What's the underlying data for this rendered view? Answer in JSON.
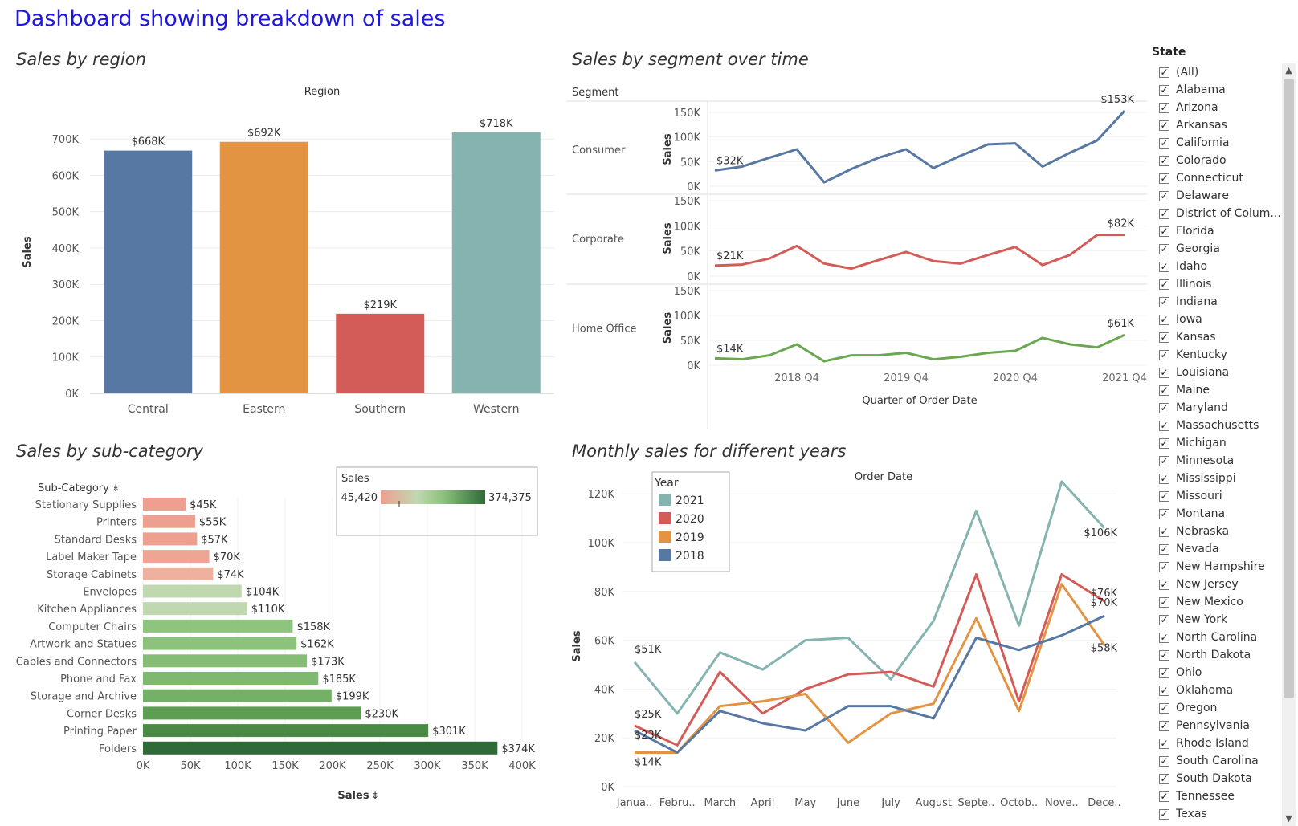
{
  "dashboard_title": "Dashboard showing breakdown of sales",
  "colors": {
    "central": "#5878a4",
    "eastern": "#e39442",
    "southern": "#d35c58",
    "western": "#85b4b0",
    "consumer": "#5878a4",
    "corporate": "#d35c58",
    "home_office": "#6aa84f",
    "y2021": "#85b4b0",
    "y2020": "#d35c58",
    "y2019": "#e39442",
    "y2018": "#5878a4"
  },
  "chart_data": [
    {
      "id": "region",
      "type": "bar",
      "title": "Sales by region",
      "header": "Region",
      "ylabel": "Sales",
      "categories": [
        "Central",
        "Eastern",
        "Southern",
        "Western"
      ],
      "values": [
        668000,
        692000,
        219000,
        718000
      ],
      "data_labels": [
        "$668K",
        "$692K",
        "$219K",
        "$718K"
      ],
      "ylim": [
        0,
        740000
      ],
      "yticks": [
        0,
        100000,
        200000,
        300000,
        400000,
        500000,
        600000,
        700000
      ],
      "ytick_labels": [
        "0K",
        "100K",
        "200K",
        "300K",
        "400K",
        "500K",
        "600K",
        "700K"
      ]
    },
    {
      "id": "segment",
      "type": "line",
      "title": "Sales by segment over time",
      "header": "Segment",
      "xlabel": "Quarter of Order Date",
      "ylabel": "Sales",
      "x_tick_labels": [
        "2018 Q4",
        "2019 Q4",
        "2020 Q4",
        "2021 Q4"
      ],
      "ylim": [
        0,
        150000
      ],
      "ytick_labels": [
        "0K",
        "50K",
        "100K",
        "150K"
      ],
      "series": [
        {
          "name": "Consumer",
          "values": [
            32000,
            40000,
            58000,
            75000,
            8000,
            35000,
            58000,
            75000,
            37000,
            62000,
            85000,
            87000,
            40000,
            68000,
            93000,
            153000
          ],
          "first_label": "$32K",
          "last_label": "$153K"
        },
        {
          "name": "Corporate",
          "values": [
            21000,
            23000,
            35000,
            60000,
            25000,
            15000,
            32000,
            48000,
            30000,
            25000,
            42000,
            58000,
            22000,
            42000,
            82000,
            82000
          ],
          "first_label": "$21K",
          "last_label": "$82K"
        },
        {
          "name": "Home Office",
          "values": [
            14000,
            12000,
            20000,
            42000,
            8000,
            20000,
            20000,
            25000,
            12000,
            17000,
            25000,
            29000,
            55000,
            42000,
            36000,
            61000
          ],
          "first_label": "$14K",
          "last_label": "$61K"
        }
      ]
    },
    {
      "id": "subcategory",
      "type": "bar",
      "title": "Sales by sub-category",
      "header": "Sub-Category",
      "xlabel": "Sales",
      "categories": [
        "Stationary Supplies",
        "Printers",
        "Standard Desks",
        "Label Maker Tape",
        "Storage Cabinets",
        "Envelopes",
        "Kitchen Appliances",
        "Computer Chairs",
        "Artwork and Statues",
        "Cables and Connectors",
        "Phone and Fax",
        "Storage and Archive",
        "Corner Desks",
        "Printing Paper",
        "Folders"
      ],
      "values": [
        45000,
        55000,
        57000,
        70000,
        74000,
        104000,
        110000,
        158000,
        162000,
        173000,
        185000,
        199000,
        230000,
        301000,
        374000
      ],
      "data_labels": [
        "$45K",
        "$55K",
        "$57K",
        "$70K",
        "$74K",
        "$104K",
        "$110K",
        "$158K",
        "$162K",
        "$173K",
        "$185K",
        "$199K",
        "$230K",
        "$301K",
        "$374K"
      ],
      "colors": [
        "#eda08f",
        "#eda08f",
        "#eda08f",
        "#eea594",
        "#eeb09f",
        "#c0d8b0",
        "#c0d8b0",
        "#8ec47e",
        "#8cc27c",
        "#85bd76",
        "#7fb870",
        "#74b065",
        "#5d9e52",
        "#4b8a46",
        "#2f6a38"
      ],
      "xlim": [
        0,
        400000
      ],
      "xtick_labels": [
        "0K",
        "50K",
        "100K",
        "150K",
        "200K",
        "250K",
        "300K",
        "350K",
        "400K"
      ],
      "legend": {
        "title": "Sales",
        "min_label": "45,420",
        "max_label": "374,375"
      }
    },
    {
      "id": "monthly",
      "type": "line",
      "title": "Monthly sales  for different years",
      "header": "Order Date",
      "ylabel": "Sales",
      "categories": [
        "Janua..",
        "Febru..",
        "March",
        "April",
        "May",
        "June",
        "July",
        "August",
        "Septe..",
        "Octob..",
        "Nove..",
        "Dece.."
      ],
      "ylim": [
        0,
        125000
      ],
      "ytick_labels": [
        "0K",
        "20K",
        "40K",
        "60K",
        "80K",
        "100K",
        "120K"
      ],
      "legend_title": "Year",
      "series": [
        {
          "name": "2021",
          "values": [
            51000,
            30000,
            55000,
            48000,
            60000,
            61000,
            44000,
            68000,
            113000,
            66000,
            125000,
            106000
          ],
          "first_label": "$51K",
          "last_label": "$106K"
        },
        {
          "name": "2020",
          "values": [
            25000,
            17000,
            47000,
            30000,
            40000,
            46000,
            47000,
            41000,
            87000,
            35000,
            87000,
            76000
          ],
          "first_label": "$25K",
          "last_label": "$76K"
        },
        {
          "name": "2019",
          "values": [
            14000,
            14000,
            33000,
            35000,
            38000,
            18000,
            30000,
            34000,
            69000,
            31000,
            83000,
            58000
          ],
          "first_label": "$14K",
          "last_label": "$58K"
        },
        {
          "name": "2018",
          "values": [
            23000,
            14000,
            31000,
            26000,
            23000,
            33000,
            33000,
            28000,
            61000,
            56000,
            62000,
            70000
          ],
          "first_label": "$23K",
          "last_label": "$70K"
        }
      ]
    }
  ],
  "state_filter": {
    "title": "State",
    "items": [
      "(All)",
      "Alabama",
      "Arizona",
      "Arkansas",
      "California",
      "Colorado",
      "Connecticut",
      "Delaware",
      "District of Colum...",
      "Florida",
      "Georgia",
      "Idaho",
      "Illinois",
      "Indiana",
      "Iowa",
      "Kansas",
      "Kentucky",
      "Louisiana",
      "Maine",
      "Maryland",
      "Massachusetts",
      "Michigan",
      "Minnesota",
      "Mississippi",
      "Missouri",
      "Montana",
      "Nebraska",
      "Nevada",
      "New Hampshire",
      "New Jersey",
      "New Mexico",
      "New York",
      "North Carolina",
      "North Dakota",
      "Ohio",
      "Oklahoma",
      "Oregon",
      "Pennsylvania",
      "Rhode Island",
      "South Carolina",
      "South Dakota",
      "Tennessee",
      "Texas"
    ],
    "check_glyph": "✓"
  }
}
